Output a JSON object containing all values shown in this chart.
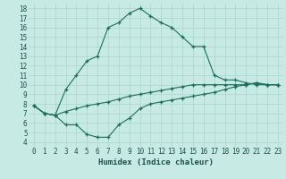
{
  "xlabel": "Humidex (Indice chaleur)",
  "bg_color": "#c8eae4",
  "grid_color": "#b0d8d0",
  "line_color": "#1a6e5e",
  "xlim": [
    -0.5,
    23.5
  ],
  "ylim": [
    3.5,
    18.5
  ],
  "xticks": [
    0,
    1,
    2,
    3,
    4,
    5,
    6,
    7,
    8,
    9,
    10,
    11,
    12,
    13,
    14,
    15,
    16,
    17,
    18,
    19,
    20,
    21,
    22,
    23
  ],
  "yticks": [
    4,
    5,
    6,
    7,
    8,
    9,
    10,
    11,
    12,
    13,
    14,
    15,
    16,
    17,
    18
  ],
  "curve_main_x": [
    0,
    1,
    2,
    3,
    4,
    5,
    6,
    7,
    8,
    9,
    10,
    11,
    12,
    13,
    14,
    15,
    16,
    17,
    18,
    19,
    20,
    21,
    22,
    23
  ],
  "curve_main_y": [
    7.8,
    7.0,
    6.8,
    9.5,
    11.0,
    12.5,
    13.0,
    16.0,
    16.5,
    17.5,
    18.0,
    17.2,
    16.5,
    16.0,
    15.0,
    14.0,
    14.0,
    11.0,
    10.5,
    10.5,
    10.2,
    10.0,
    10.0,
    10.0
  ],
  "curve_low_x": [
    0,
    1,
    2,
    3,
    4,
    5,
    6,
    7,
    8,
    9,
    10,
    11,
    12,
    13,
    14,
    15,
    16,
    17,
    18,
    19,
    20,
    21,
    22,
    23
  ],
  "curve_low_y": [
    7.8,
    7.0,
    6.8,
    5.8,
    5.8,
    4.8,
    4.5,
    4.5,
    5.8,
    6.5,
    7.5,
    8.0,
    8.2,
    8.4,
    8.6,
    8.8,
    9.0,
    9.2,
    9.5,
    9.8,
    10.0,
    10.2,
    10.0,
    10.0
  ],
  "curve_mid_x": [
    0,
    1,
    2,
    3,
    4,
    5,
    6,
    7,
    8,
    9,
    10,
    11,
    12,
    13,
    14,
    15,
    16,
    17,
    18,
    19,
    20,
    21,
    22,
    23
  ],
  "curve_mid_y": [
    7.8,
    7.0,
    6.8,
    7.2,
    7.5,
    7.8,
    8.0,
    8.2,
    8.5,
    8.8,
    9.0,
    9.2,
    9.4,
    9.6,
    9.8,
    10.0,
    10.0,
    10.0,
    10.0,
    10.0,
    10.0,
    10.2,
    10.0,
    10.0
  ]
}
